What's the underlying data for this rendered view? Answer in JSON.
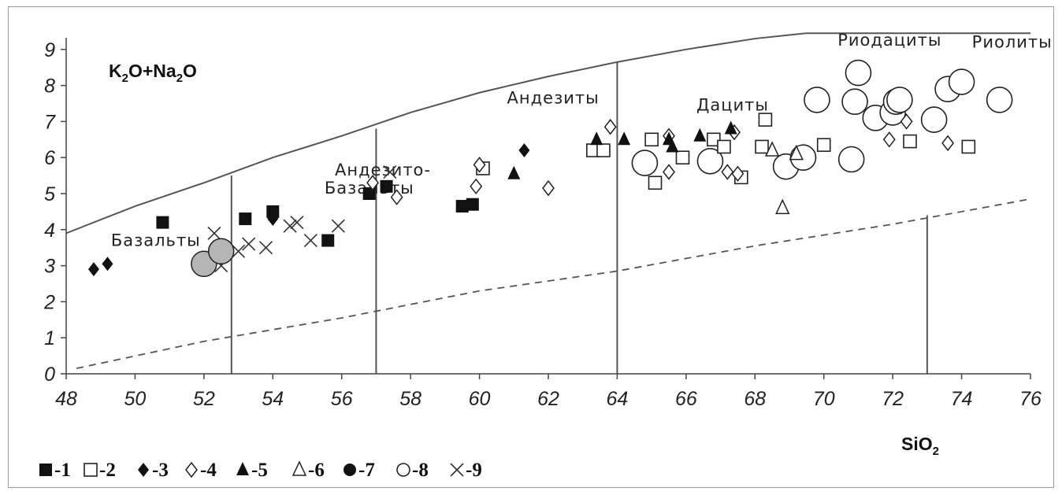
{
  "chart_data": {
    "type": "scatter",
    "title": "",
    "ylabel_html": "K<sub>2</sub>O+Na<sub>2</sub>O",
    "ylabel": {
      "parts": [
        "K",
        "2",
        "O+Na",
        "2",
        "O"
      ]
    },
    "xlabel": {
      "parts": [
        "SiO",
        "2"
      ]
    },
    "xlim": [
      48,
      76
    ],
    "ylim": [
      0,
      9.5
    ],
    "x_ticks": [
      "48",
      "50",
      "52",
      "54",
      "56",
      "58",
      "60",
      "62",
      "64",
      "66",
      "68",
      "70",
      "72",
      "74",
      "76"
    ],
    "y_ticks": [
      "0",
      "1",
      "2",
      "3",
      "4",
      "5",
      "6",
      "7",
      "8",
      "9"
    ],
    "grid": false,
    "legend_position": "bottom",
    "field_labels": [
      {
        "text": "Базальты",
        "x": 49.3,
        "y": 3.55
      },
      {
        "text": "Андезито-",
        "x": 55.8,
        "y": 5.5
      },
      {
        "text": "Базальты",
        "x": 55.5,
        "y": 5.0
      },
      {
        "text": "Андезиты",
        "x": 60.8,
        "y": 7.5
      },
      {
        "text": "Дациты",
        "x": 66.3,
        "y": 7.3
      },
      {
        "text": "Риодациты",
        "x": 70.4,
        "y": 9.1
      },
      {
        "text": "Риолиты",
        "x": 74.3,
        "y": 9.05
      }
    ],
    "boundary_upper": [
      [
        48,
        3.9
      ],
      [
        50,
        4.65
      ],
      [
        52,
        5.3
      ],
      [
        54,
        6.0
      ],
      [
        56,
        6.6
      ],
      [
        58,
        7.25
      ],
      [
        60,
        7.8
      ],
      [
        62,
        8.25
      ],
      [
        64,
        8.65
      ],
      [
        66,
        9.0
      ],
      [
        68,
        9.3
      ],
      [
        69.5,
        9.45
      ],
      [
        76,
        9.45
      ]
    ],
    "boundary_lower_dashed": [
      [
        48.3,
        0.15
      ],
      [
        52,
        0.9
      ],
      [
        56,
        1.55
      ],
      [
        60,
        2.3
      ],
      [
        64,
        2.85
      ],
      [
        68,
        3.55
      ],
      [
        72,
        4.15
      ],
      [
        76,
        4.85
      ]
    ],
    "field_dividers": [
      {
        "x": 52.8,
        "y_top": 5.5
      },
      {
        "x": 57.0,
        "y_top": 6.8
      },
      {
        "x": 64.0,
        "y_top": 8.65
      },
      {
        "x": 73.0,
        "y_top": 4.4
      }
    ],
    "series": [
      {
        "name": "1",
        "marker": "square-filled",
        "points": [
          [
            50.8,
            4.2
          ],
          [
            53.2,
            4.3
          ],
          [
            54.0,
            4.5
          ],
          [
            55.6,
            3.7
          ],
          [
            56.8,
            5.0
          ],
          [
            57.3,
            5.2
          ],
          [
            59.5,
            4.65
          ],
          [
            59.8,
            4.7
          ]
        ]
      },
      {
        "name": "2",
        "marker": "square-open",
        "points": [
          [
            60.1,
            5.7
          ],
          [
            63.3,
            6.2
          ],
          [
            63.6,
            6.2
          ],
          [
            65.0,
            6.5
          ],
          [
            65.1,
            5.3
          ],
          [
            65.9,
            6.0
          ],
          [
            66.8,
            6.5
          ],
          [
            67.1,
            6.3
          ],
          [
            67.6,
            5.45
          ],
          [
            68.2,
            6.3
          ],
          [
            68.3,
            7.05
          ],
          [
            70.0,
            6.35
          ],
          [
            72.5,
            6.45
          ],
          [
            74.2,
            6.3
          ]
        ]
      },
      {
        "name": "3",
        "marker": "diamond-filled",
        "points": [
          [
            48.8,
            2.9
          ],
          [
            49.2,
            3.05
          ],
          [
            54.0,
            4.3
          ],
          [
            61.3,
            6.2
          ]
        ]
      },
      {
        "name": "4",
        "marker": "diamond-open",
        "points": [
          [
            56.9,
            5.3
          ],
          [
            57.6,
            4.9
          ],
          [
            59.9,
            5.2
          ],
          [
            60.0,
            5.8
          ],
          [
            62.0,
            5.15
          ],
          [
            63.8,
            6.85
          ],
          [
            65.5,
            5.6
          ],
          [
            65.5,
            6.6
          ],
          [
            67.2,
            5.6
          ],
          [
            67.4,
            6.7
          ],
          [
            67.5,
            5.55
          ],
          [
            71.9,
            6.5
          ],
          [
            72.4,
            7.0
          ],
          [
            73.6,
            6.4
          ]
        ]
      },
      {
        "name": "5",
        "marker": "triangle-filled",
        "points": [
          [
            61.0,
            5.55
          ],
          [
            63.4,
            6.5
          ],
          [
            64.2,
            6.5
          ],
          [
            65.5,
            6.5
          ],
          [
            65.6,
            6.3
          ],
          [
            66.4,
            6.6
          ],
          [
            67.3,
            6.8
          ]
        ]
      },
      {
        "name": "6",
        "marker": "triangle-open",
        "points": [
          [
            68.5,
            6.2
          ],
          [
            68.8,
            4.6
          ],
          [
            69.2,
            6.1
          ]
        ]
      },
      {
        "name": "7",
        "marker": "circle-filled",
        "points": [
          [
            52.0,
            3.05
          ],
          [
            52.5,
            3.4
          ]
        ]
      },
      {
        "name": "8",
        "marker": "circle-open",
        "points": [
          [
            64.8,
            5.85
          ],
          [
            66.7,
            5.9
          ],
          [
            68.9,
            5.75
          ],
          [
            69.4,
            6.0
          ],
          [
            69.8,
            7.6
          ],
          [
            70.8,
            5.95
          ],
          [
            70.9,
            7.55
          ],
          [
            71.0,
            8.35
          ],
          [
            71.5,
            7.1
          ],
          [
            72.0,
            7.25
          ],
          [
            72.1,
            7.55
          ],
          [
            72.2,
            7.6
          ],
          [
            73.2,
            7.05
          ],
          [
            73.6,
            7.9
          ],
          [
            74.0,
            8.1
          ],
          [
            75.1,
            7.6
          ]
        ]
      },
      {
        "name": "9",
        "marker": "x",
        "points": [
          [
            52.3,
            3.9
          ],
          [
            52.5,
            3.0
          ],
          [
            53.0,
            3.4
          ],
          [
            53.3,
            3.6
          ],
          [
            54.5,
            4.1
          ],
          [
            54.7,
            4.2
          ],
          [
            55.1,
            3.7
          ],
          [
            53.8,
            3.5
          ],
          [
            55.9,
            4.1
          ],
          [
            57.4,
            5.6
          ]
        ]
      }
    ],
    "colors": {
      "filled_marker": "#111111",
      "open_marker_stroke": "#222222",
      "circle_7_fill": "#b5b5b5",
      "boundary_line": "#555555",
      "axis": "#444444"
    }
  }
}
